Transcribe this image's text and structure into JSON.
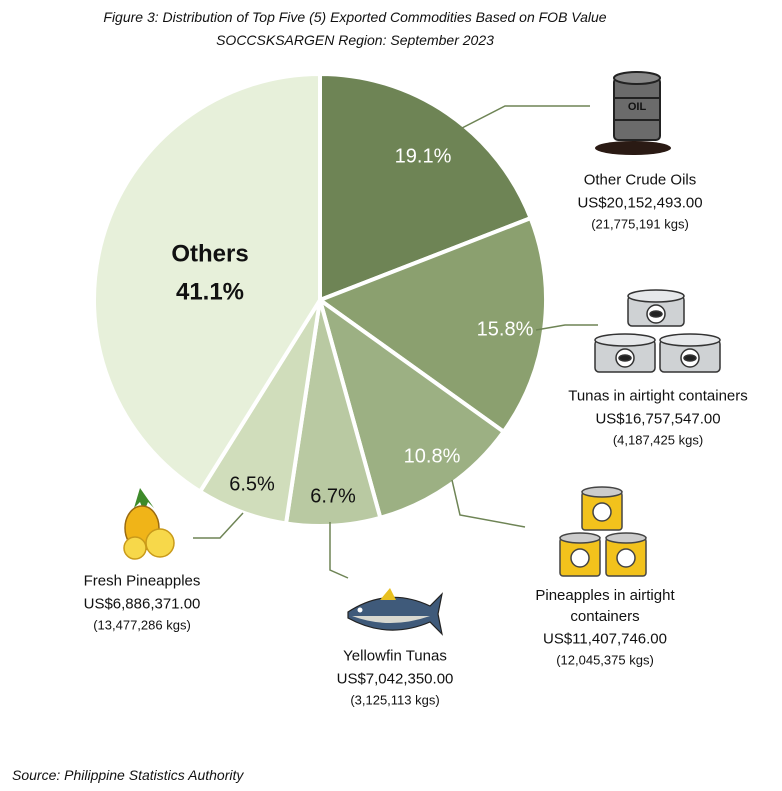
{
  "chart_data": {
    "type": "pie",
    "title": "Figure 3: Distribution of Top Five (5) Exported Commodities Based on FOB Value",
    "subtitle": "SOCCSKSARGEN Region: September 2023",
    "categories": [
      "Other Crude Oils",
      "Tunas in airtight containers",
      "Pineapples in airtight containers",
      "Yellowfin Tunas",
      "Fresh Pineapples",
      "Others"
    ],
    "values": [
      19.1,
      15.8,
      10.8,
      6.7,
      6.5,
      41.1
    ],
    "value_labels": [
      "19.1%",
      "15.8%",
      "10.8%",
      "6.7%",
      "6.5%",
      "41.1%"
    ],
    "colors": [
      "#6e8455",
      "#8ba06f",
      "#9cb083",
      "#b9c9a2",
      "#d0ddbb",
      "#e7f0da"
    ],
    "fob_values": [
      "US$20,152,493.00",
      "US$16,757,547.00",
      "US$11,407,746.00",
      "US$7,042,350.00",
      "US$6,886,371.00",
      null
    ],
    "weights": [
      "(21,775,191 kgs)",
      "(4,187,425 kgs)",
      "(12,045,375 kgs)",
      "(3,125,113 kgs)",
      "(13,477,286 kgs)",
      null
    ],
    "source": "Source: Philippine Statistics Authority"
  }
}
